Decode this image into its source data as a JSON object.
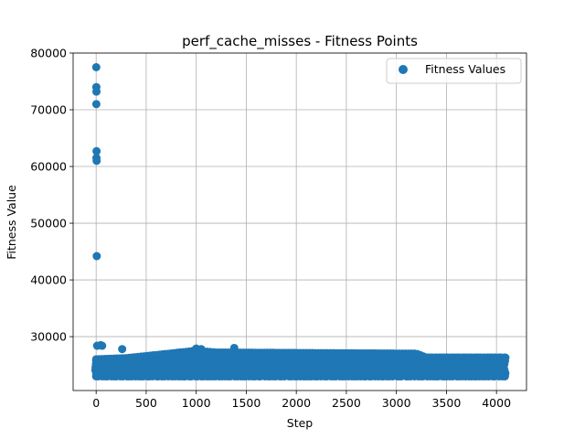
{
  "chart_data": {
    "type": "scatter",
    "title": "perf_cache_misses - Fitness Points",
    "xlabel": "Step",
    "ylabel": "Fitness Value",
    "xlim": [
      -230,
      4300
    ],
    "ylim": [
      20500,
      80000
    ],
    "xticks": [
      0,
      500,
      1000,
      1500,
      2000,
      2500,
      3000,
      3500,
      4000
    ],
    "yticks": [
      30000,
      40000,
      50000,
      60000,
      70000,
      80000
    ],
    "grid": true,
    "legend_position": "top-right",
    "series": [
      {
        "name": "Fitness Values",
        "color": "#1f77b4",
        "outliers": [
          [
            1,
            77500
          ],
          [
            2,
            74000
          ],
          [
            3,
            73200
          ],
          [
            2,
            71000
          ],
          [
            4,
            62700
          ],
          [
            3,
            61500
          ],
          [
            5,
            61000
          ],
          [
            6,
            44200
          ],
          [
            10,
            28400
          ],
          [
            45,
            28500
          ],
          [
            60,
            28400
          ],
          [
            260,
            27800
          ],
          [
            1000,
            27900
          ],
          [
            1050,
            27800
          ],
          [
            1380,
            28000
          ]
        ],
        "dense_band": {
          "x_range": [
            0,
            4080
          ],
          "y_bottom": 23000,
          "y_top_segments": [
            [
              0,
              26000
            ],
            [
              300,
              26200
            ],
            [
              1000,
              27500
            ],
            [
              1200,
              27200
            ],
            [
              3200,
              27000
            ],
            [
              3300,
              26300
            ],
            [
              4080,
              26300
            ]
          ]
        }
      }
    ]
  }
}
